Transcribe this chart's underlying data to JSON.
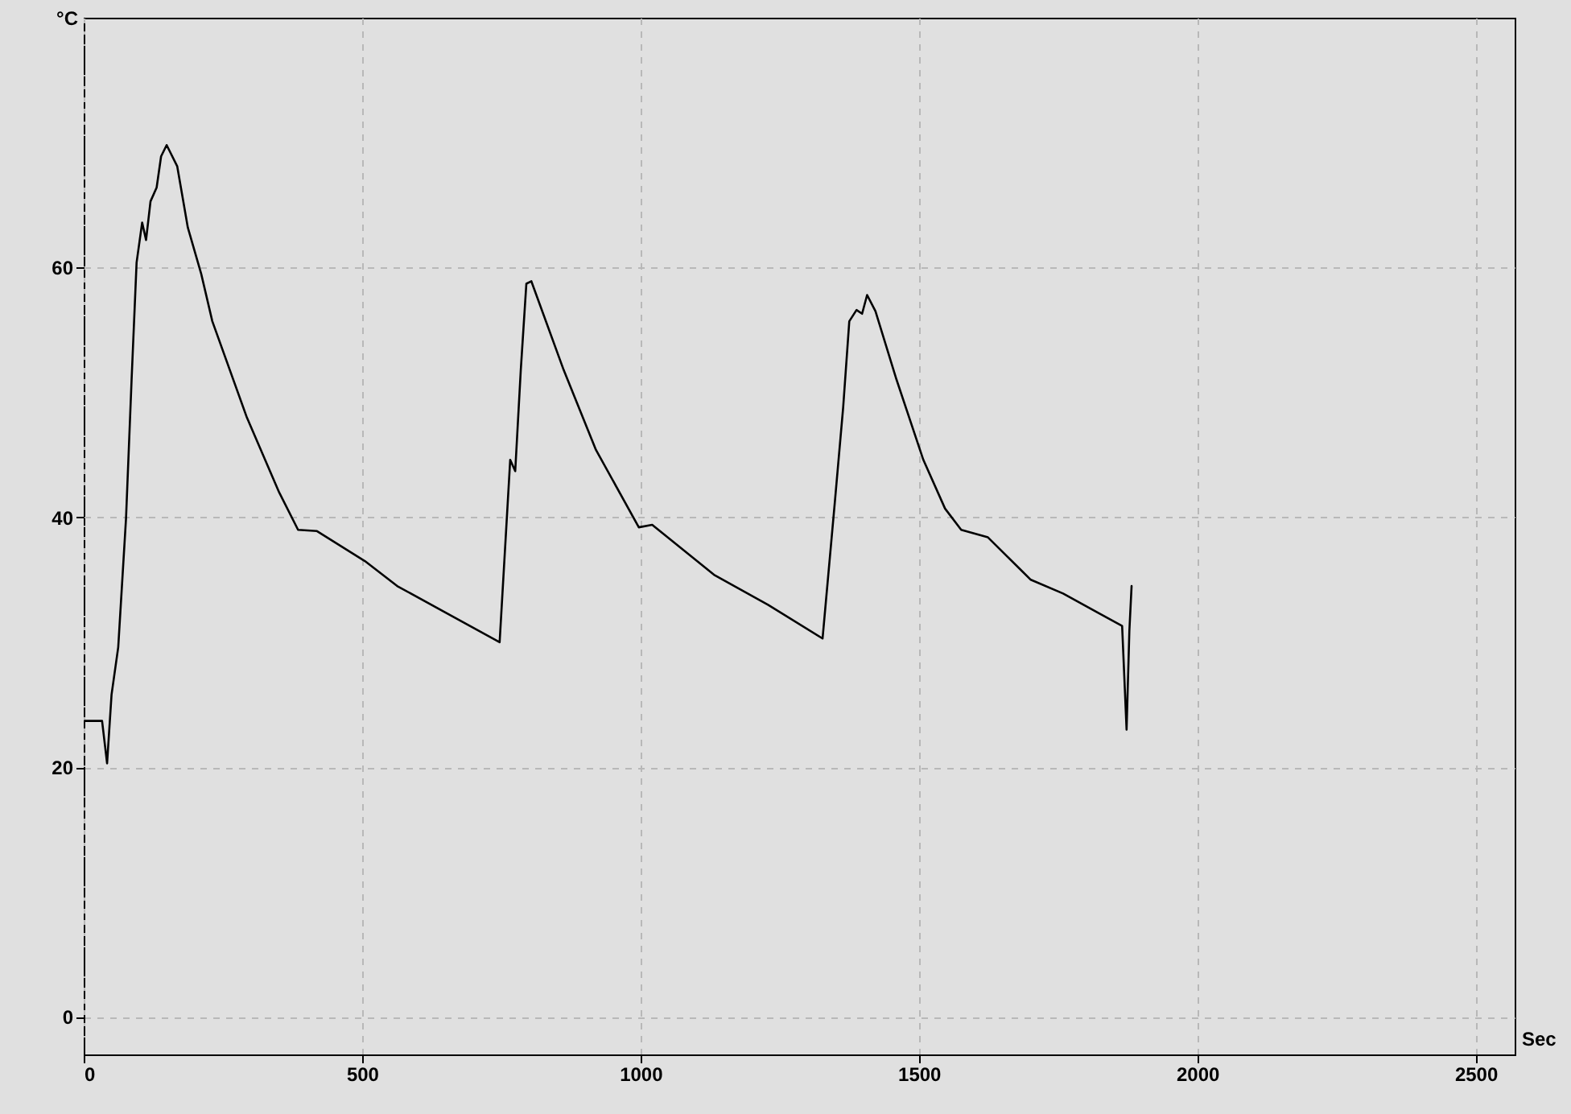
{
  "chart_data": {
    "type": "line",
    "xlabel": "Sec",
    "ylabel": "°C",
    "x": [
      2,
      33,
      42,
      50,
      62,
      76,
      86,
      95,
      105,
      112,
      120,
      131,
      139,
      149,
      168,
      187,
      211,
      231,
      293,
      351,
      385,
      419,
      505,
      563,
      747,
      766,
      775,
      785,
      795,
      804,
      862,
      920,
      997,
      1021,
      1132,
      1229,
      1327,
      1349,
      1364,
      1375,
      1388,
      1398,
      1407,
      1422,
      1460,
      1508,
      1547,
      1576,
      1624,
      1701,
      1759,
      1865,
      1873,
      1878,
      1882
    ],
    "series": [
      {
        "color": "#000000",
        "values": [
          23.7,
          23.7,
          20.3,
          25.8,
          29.6,
          39.9,
          51,
          60.4,
          63.6,
          62.2,
          65.3,
          66.4,
          68.9,
          69.8,
          68.1,
          63.2,
          59.5,
          55.7,
          48,
          42,
          39,
          38.9,
          36.5,
          34.5,
          30,
          44.6,
          43.7,
          51.8,
          58.7,
          58.9,
          51.8,
          45.4,
          39.2,
          39.4,
          35.4,
          33,
          30.3,
          41.2,
          48.8,
          55.7,
          56.6,
          56.3,
          57.8,
          56.5,
          51,
          44.6,
          40.7,
          39,
          38.4,
          35,
          33.9,
          31.3,
          23,
          30.9,
          34.5
        ]
      }
    ],
    "xlim": [
      0,
      2570
    ],
    "ylim": [
      -3,
      80
    ],
    "xticks": [
      0,
      500,
      1000,
      1500,
      2000,
      2500
    ],
    "yticks": [
      0,
      20,
      40,
      60
    ],
    "grid": true,
    "line_style": "solid",
    "marker": "none"
  }
}
